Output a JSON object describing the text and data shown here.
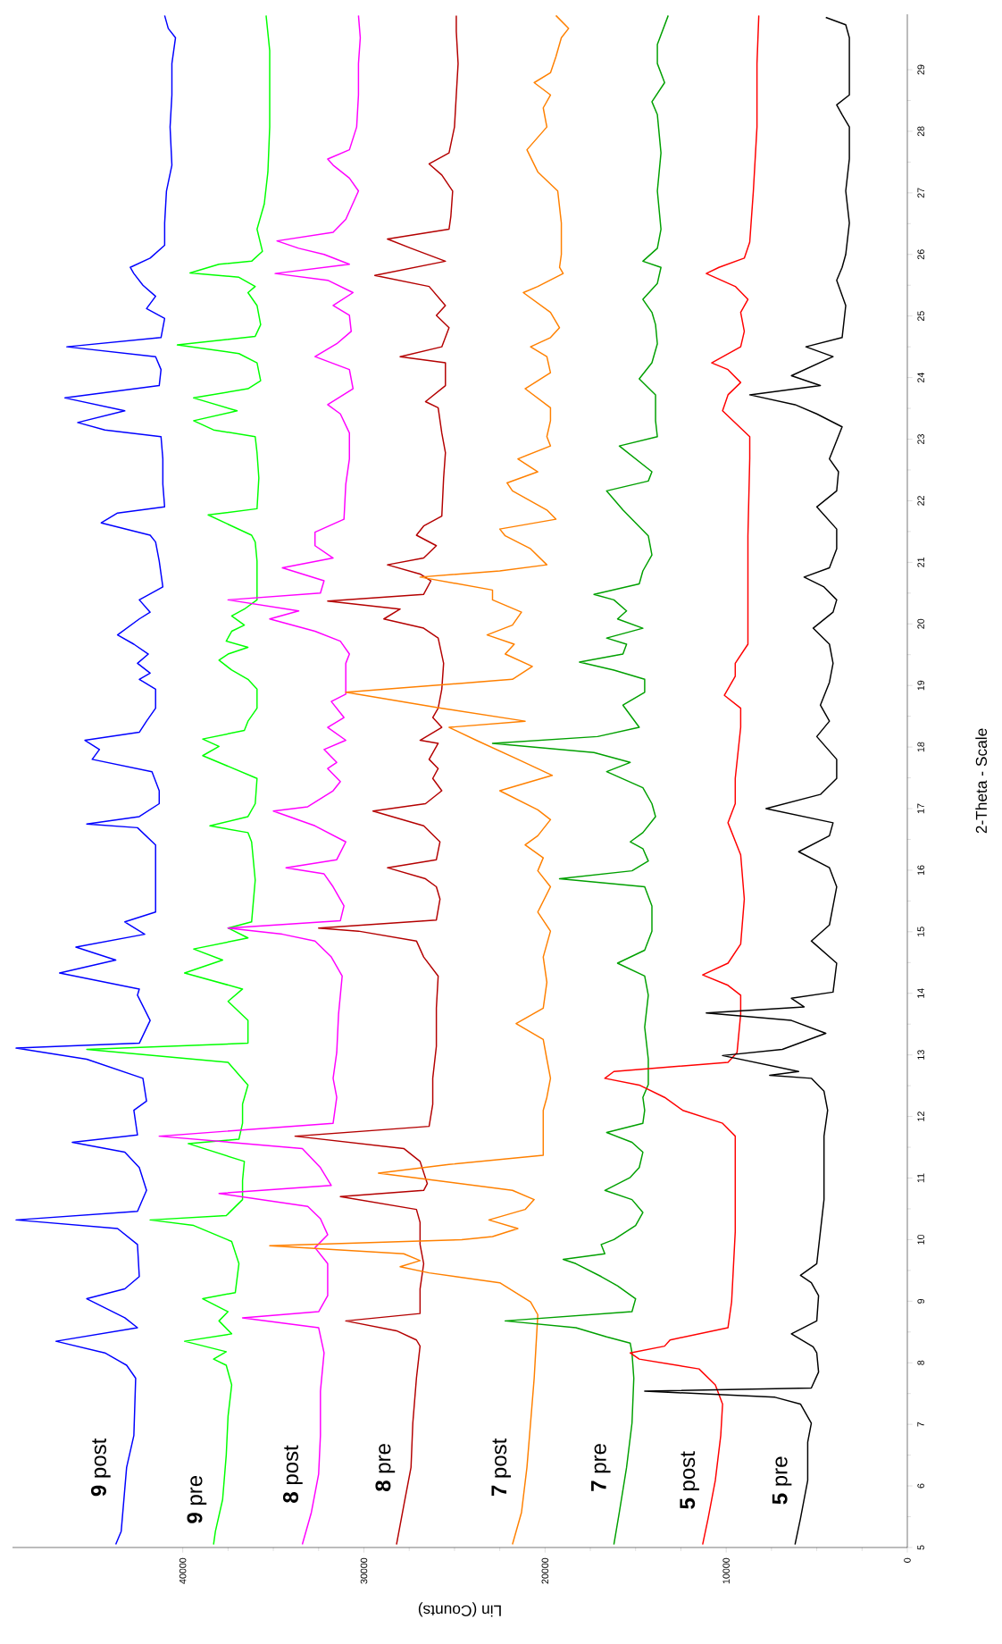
{
  "chart_data": {
    "type": "line",
    "xlabel": "Lin (Counts)",
    "ylabel": "2-Theta - Scale",
    "xlim": [
      49400,
      0
    ],
    "ylim": [
      5,
      29.9
    ],
    "xticks": [
      0,
      10000,
      20000,
      30000,
      40000
    ],
    "yticks": [
      5,
      6,
      7,
      8,
      9,
      10,
      11,
      12,
      13,
      14,
      15,
      16,
      17,
      18,
      19,
      20,
      21,
      22,
      23,
      24,
      25,
      26,
      27,
      28,
      29
    ],
    "marker": "none",
    "line_style": "solid",
    "grid": false,
    "series": [
      {
        "name": "**9** post",
        "color": "#0000ff",
        "values": [
          5.05,
          5.26,
          6.3,
          6.82,
          7.75,
          7.96,
          8.16,
          8.35,
          8.57,
          8.73,
          9.04,
          9.2,
          9.4,
          9.92,
          10.18,
          10.32,
          10.46,
          10.8,
          11.17,
          11.42,
          11.58,
          11.7,
          12.1,
          12.25,
          12.62,
          12.93,
          13.11,
          13.19,
          13.56,
          13.97,
          14.07,
          14.33,
          14.54,
          14.75,
          14.96,
          15.16,
          15.32,
          16.41,
          16.69,
          16.75,
          16.87,
          17.08,
          17.29,
          17.6,
          17.8,
          17.96,
          18.11,
          18.24,
          18.42,
          18.63,
          18.94,
          19.1,
          19.2,
          19.36,
          19.51,
          19.67,
          19.82,
          20.08,
          20.19,
          20.39,
          20.6,
          21.02,
          21.33,
          21.44,
          21.64,
          21.8,
          21.9,
          22.27,
          22.68,
          23.04,
          23.15,
          23.27,
          23.46,
          23.67,
          23.87,
          24.13,
          24.34,
          24.5,
          24.65,
          24.96,
          25.12,
          25.32,
          25.5,
          25.69,
          25.79,
          25.94,
          26.15,
          26.51,
          27.03,
          27.45,
          28.07,
          28.59,
          29.1,
          29.52,
          29.67,
          29.88
        ],
        "x": [
          43700,
          43400,
          43100,
          42700,
          42600,
          43100,
          44300,
          47000,
          42500,
          43200,
          45300,
          43200,
          42400,
          42500,
          43600,
          49200,
          42500,
          42000,
          42400,
          43200,
          46100,
          42500,
          42700,
          42000,
          42200,
          45300,
          49200,
          42400,
          41800,
          42500,
          42400,
          46800,
          43700,
          45900,
          42100,
          43200,
          41500,
          41500,
          42500,
          45300,
          42400,
          41300,
          41300,
          41700,
          45000,
          44600,
          45400,
          42400,
          42000,
          41500,
          41500,
          42400,
          41800,
          42500,
          41900,
          42700,
          43600,
          42400,
          41800,
          42400,
          41100,
          41300,
          41500,
          41800,
          44500,
          43600,
          41000,
          41100,
          41100,
          41200,
          44300,
          45800,
          43200,
          46500,
          41300,
          41200,
          41500,
          46400,
          41200,
          41000,
          42000,
          41500,
          42200,
          42700,
          42900,
          41800,
          41000,
          41000,
          40900,
          40600,
          40700,
          40600,
          40600,
          40400,
          40800,
          41000
        ]
      },
      {
        "name": "**9** pre",
        "color": "#00ff00",
        "values": [
          5.05,
          5.26,
          5.78,
          6.5,
          7.13,
          7.64,
          7.96,
          8.06,
          8.18,
          8.35,
          8.47,
          8.68,
          8.83,
          9.04,
          9.14,
          9.61,
          9.97,
          10.23,
          10.32,
          10.39,
          10.65,
          10.96,
          11.27,
          11.56,
          11.63,
          11.89,
          12.2,
          12.51,
          12.88,
          13.09,
          13.19,
          13.56,
          13.87,
          14.07,
          14.33,
          14.54,
          14.72,
          14.9,
          15.06,
          15.16,
          15.84,
          16.46,
          16.61,
          16.72,
          16.87,
          17.08,
          17.49,
          17.86,
          18.01,
          18.13,
          18.27,
          18.42,
          18.63,
          18.94,
          19.1,
          19.25,
          19.41,
          19.51,
          19.62,
          19.72,
          19.88,
          19.98,
          20.13,
          20.24,
          20.39,
          21.02,
          21.33,
          21.44,
          21.77,
          21.87,
          22.37,
          22.78,
          23.04,
          23.15,
          23.3,
          23.46,
          23.67,
          23.82,
          23.95,
          24.24,
          24.39,
          24.53,
          24.67,
          24.86,
          25.17,
          25.38,
          25.48,
          25.63,
          25.7,
          25.84,
          25.89,
          26.05,
          26.41,
          26.82,
          27.34,
          28.07,
          29.31,
          29.88
        ],
        "x": [
          38300,
          38200,
          37800,
          37600,
          37500,
          37300,
          37600,
          38300,
          37600,
          39900,
          37300,
          38000,
          37500,
          38900,
          37100,
          36900,
          37300,
          39400,
          41800,
          37600,
          36700,
          36700,
          36600,
          39700,
          36900,
          36700,
          36700,
          36400,
          37500,
          45300,
          36400,
          36400,
          37500,
          36700,
          39900,
          37800,
          39400,
          36400,
          37500,
          36200,
          36000,
          36200,
          36400,
          38500,
          36400,
          36000,
          35900,
          38900,
          38000,
          38900,
          36600,
          36400,
          35900,
          35900,
          36400,
          37300,
          38000,
          37500,
          36400,
          37600,
          37300,
          36600,
          37300,
          36600,
          35900,
          35900,
          36000,
          36200,
          38600,
          35900,
          35800,
          35900,
          36000,
          38300,
          39400,
          37000,
          39400,
          36400,
          35700,
          35900,
          36900,
          40300,
          36000,
          35700,
          35900,
          36400,
          36000,
          36900,
          39600,
          38000,
          36200,
          35600,
          35900,
          35500,
          35300,
          35200,
          35200,
          35400
        ]
      },
      {
        "name": "**8** post",
        "color": "#ff00ff",
        "values": [
          5.05,
          5.57,
          6.19,
          6.82,
          7.54,
          8.16,
          8.57,
          8.73,
          8.83,
          9.09,
          9.61,
          9.87,
          10.08,
          10.34,
          10.54,
          10.75,
          10.88,
          11.17,
          11.48,
          11.68,
          11.89,
          12.31,
          12.62,
          13.04,
          13.66,
          14.28,
          14.59,
          14.85,
          14.96,
          15.06,
          15.18,
          15.42,
          15.73,
          15.94,
          16.04,
          16.17,
          16.46,
          16.72,
          16.96,
          17.03,
          17.29,
          17.44,
          17.65,
          17.75,
          17.96,
          18.11,
          18.32,
          18.48,
          18.74,
          18.86,
          19.36,
          19.51,
          19.72,
          19.88,
          20.08,
          20.21,
          20.39,
          20.5,
          20.7,
          20.91,
          21.07,
          21.27,
          21.49,
          21.7,
          22.27,
          22.68,
          23.1,
          23.41,
          23.56,
          23.82,
          24.13,
          24.34,
          24.55,
          24.75,
          25.01,
          25.17,
          25.38,
          25.58,
          25.69,
          25.84,
          26.0,
          26.1,
          26.22,
          26.36,
          26.57,
          27.03,
          27.24,
          27.45,
          27.55,
          27.7,
          28.07,
          28.59,
          29.1,
          29.52,
          29.88
        ],
        "x": [
          33400,
          32900,
          32500,
          32400,
          32400,
          32200,
          32500,
          36700,
          32500,
          32000,
          32000,
          32700,
          32000,
          32400,
          33100,
          38000,
          31800,
          32400,
          33400,
          41300,
          31700,
          31500,
          31700,
          31500,
          31400,
          31200,
          31800,
          32700,
          34500,
          37500,
          31300,
          31100,
          31700,
          32200,
          34300,
          31500,
          31000,
          32700,
          35000,
          33100,
          31700,
          31300,
          32000,
          31500,
          32200,
          31000,
          32000,
          31100,
          31800,
          31000,
          31000,
          30800,
          31300,
          32700,
          35200,
          33600,
          37500,
          32400,
          32200,
          34500,
          31700,
          32700,
          32700,
          31100,
          31000,
          30800,
          30800,
          31300,
          32000,
          30600,
          30800,
          32700,
          31500,
          30700,
          30800,
          31700,
          30600,
          32000,
          34900,
          30800,
          32200,
          33600,
          34800,
          31700,
          31000,
          30300,
          30800,
          31700,
          32000,
          30800,
          30400,
          30300,
          30300,
          30200,
          30300
        ]
      },
      {
        "name": "**8** pre",
        "color": "#b40000",
        "values": [
          5.05,
          5.68,
          6.3,
          7.02,
          7.75,
          8.27,
          8.37,
          8.52,
          8.68,
          8.8,
          9.2,
          9.61,
          9.92,
          10.28,
          10.49,
          10.7,
          10.8,
          10.91,
          11.27,
          11.48,
          11.68,
          11.84,
          12.2,
          12.62,
          13.14,
          13.76,
          14.28,
          14.59,
          14.85,
          15.01,
          15.06,
          15.19,
          15.53,
          15.73,
          15.86,
          16.04,
          16.17,
          16.46,
          16.72,
          16.96,
          17.08,
          17.29,
          17.49,
          17.65,
          17.8,
          18.06,
          18.11,
          18.32,
          18.48,
          18.63,
          18.94,
          19.36,
          19.77,
          19.93,
          20.08,
          20.24,
          20.37,
          20.48,
          20.7,
          20.81,
          20.96,
          21.07,
          21.27,
          21.44,
          21.59,
          21.75,
          22.37,
          22.78,
          23.1,
          23.51,
          23.61,
          23.87,
          24.24,
          24.34,
          24.5,
          24.81,
          25.01,
          25.17,
          25.48,
          25.66,
          25.89,
          26.1,
          26.25,
          26.41,
          26.62,
          27.03,
          27.29,
          27.47,
          27.65,
          28.07,
          28.59,
          29.1,
          29.62,
          29.88
        ],
        "x": [
          28200,
          27800,
          27400,
          27300,
          27100,
          26900,
          27100,
          28200,
          31000,
          26900,
          26900,
          26700,
          26900,
          26900,
          27100,
          31300,
          26700,
          26500,
          26900,
          27800,
          33800,
          26400,
          26200,
          26200,
          26000,
          26000,
          25900,
          26700,
          27100,
          30300,
          32500,
          26000,
          25800,
          26000,
          26600,
          28700,
          26000,
          25800,
          26700,
          29500,
          26600,
          25700,
          26200,
          25900,
          26400,
          25900,
          26900,
          25700,
          26200,
          25900,
          25700,
          25600,
          25900,
          26700,
          28900,
          28000,
          32000,
          26700,
          26300,
          26900,
          28700,
          26700,
          26000,
          27100,
          26700,
          25700,
          25600,
          25500,
          25700,
          25900,
          26600,
          25500,
          25500,
          28000,
          25700,
          25300,
          26000,
          25500,
          26400,
          29400,
          25500,
          27400,
          28700,
          25300,
          25200,
          25100,
          25700,
          26400,
          25300,
          25000,
          24900,
          24800,
          24900,
          24900
        ]
      },
      {
        "name": "**7** post",
        "color": "#ff8000",
        "values": [
          5.05,
          5.57,
          6.3,
          7.02,
          7.75,
          8.27,
          8.78,
          8.99,
          9.3,
          9.46,
          9.56,
          9.66,
          9.77,
          9.9,
          10.0,
          10.05,
          10.18,
          10.32,
          10.49,
          10.65,
          10.8,
          10.96,
          11.08,
          11.22,
          11.37,
          12.1,
          12.31,
          12.62,
          12.93,
          13.25,
          13.51,
          13.76,
          14.18,
          14.59,
          15.01,
          15.32,
          15.73,
          15.99,
          16.2,
          16.41,
          16.56,
          16.82,
          16.98,
          17.29,
          17.54,
          17.8,
          18.11,
          18.32,
          18.42,
          18.63,
          18.89,
          19.1,
          19.31,
          19.51,
          19.67,
          19.82,
          19.98,
          20.19,
          20.39,
          20.55,
          20.76,
          20.86,
          20.96,
          21.22,
          21.43,
          21.54,
          21.7,
          21.85,
          22.16,
          22.29,
          22.47,
          22.68,
          22.89,
          23.04,
          23.3,
          23.51,
          23.82,
          24.08,
          24.34,
          24.5,
          24.65,
          24.81,
          25.06,
          25.38,
          25.48,
          25.69,
          25.79,
          26.0,
          26.51,
          27.03,
          27.34,
          27.7,
          28.07,
          28.38,
          28.59,
          28.79,
          28.95,
          29.21,
          29.52,
          29.67,
          29.88
        ],
        "x": [
          21800,
          21300,
          21000,
          20800,
          20600,
          20500,
          20400,
          20800,
          22500,
          26400,
          28000,
          26900,
          27800,
          35200,
          24600,
          22900,
          21500,
          23100,
          21100,
          20600,
          21800,
          26000,
          29200,
          25300,
          20100,
          20100,
          19900,
          19700,
          19900,
          20100,
          21600,
          20100,
          19900,
          20100,
          19700,
          20400,
          19700,
          20400,
          20100,
          21100,
          20400,
          19700,
          20400,
          22500,
          19600,
          21500,
          23800,
          25300,
          21100,
          25700,
          31000,
          21800,
          20700,
          22200,
          21700,
          23200,
          21800,
          21300,
          22900,
          22900,
          26900,
          22500,
          19900,
          20800,
          22200,
          22500,
          19400,
          19900,
          21800,
          22100,
          20400,
          21500,
          19700,
          19900,
          19700,
          19700,
          21100,
          19700,
          19900,
          20800,
          19700,
          19200,
          19700,
          21200,
          20400,
          19000,
          19200,
          19100,
          19100,
          19300,
          20400,
          21000,
          19900,
          20100,
          19700,
          20600,
          19700,
          19400,
          19100,
          18700,
          19400
        ]
      },
      {
        "name": "**7** pre",
        "color": "#00a000",
        "values": [
          5.05,
          5.57,
          6.3,
          7.02,
          7.75,
          8.16,
          8.32,
          8.42,
          8.57,
          8.68,
          8.83,
          9.04,
          9.25,
          9.4,
          9.61,
          9.68,
          9.77,
          9.92,
          10.0,
          10.23,
          10.44,
          10.65,
          10.8,
          11.01,
          11.17,
          11.42,
          11.58,
          11.74,
          11.89,
          12.1,
          12.31,
          12.52,
          12.93,
          13.45,
          13.97,
          14.28,
          14.49,
          14.7,
          15.01,
          15.42,
          15.73,
          15.86,
          15.99,
          16.15,
          16.35,
          16.46,
          16.61,
          16.87,
          17.08,
          17.34,
          17.6,
          17.75,
          17.91,
          18.06,
          18.17,
          18.32,
          18.48,
          18.68,
          18.89,
          19.1,
          19.25,
          19.38,
          19.51,
          19.67,
          19.77,
          19.93,
          20.08,
          20.21,
          20.39,
          20.48,
          20.65,
          20.86,
          21.12,
          21.43,
          21.85,
          22.16,
          22.32,
          22.47,
          22.89,
          23.04,
          23.3,
          23.72,
          23.98,
          24.24,
          24.55,
          24.86,
          25.06,
          25.27,
          25.53,
          25.79,
          25.89,
          26.1,
          26.41,
          27.03,
          27.65,
          28.27,
          28.48,
          28.79,
          29.1,
          29.41,
          29.88
        ],
        "x": [
          16200,
          15900,
          15500,
          15200,
          15100,
          15200,
          15300,
          16600,
          18300,
          22200,
          15200,
          15000,
          16000,
          16900,
          18300,
          19000,
          16700,
          16900,
          16200,
          15000,
          14600,
          15200,
          16700,
          15300,
          14800,
          14600,
          15200,
          16600,
          14600,
          14500,
          14600,
          14300,
          14300,
          14500,
          14300,
          14500,
          16000,
          14500,
          14100,
          14100,
          14500,
          19200,
          15200,
          14300,
          14600,
          15300,
          14600,
          13900,
          14100,
          14600,
          16600,
          15300,
          17300,
          22900,
          17100,
          14800,
          15200,
          15700,
          14500,
          14500,
          16200,
          18100,
          15700,
          15500,
          16600,
          14600,
          16000,
          15500,
          16200,
          17300,
          14800,
          14600,
          14100,
          14300,
          15700,
          16600,
          14300,
          14100,
          15900,
          13800,
          13900,
          13900,
          14800,
          14100,
          13800,
          13900,
          14100,
          14600,
          13800,
          13600,
          14600,
          13800,
          13600,
          13800,
          13600,
          13800,
          14100,
          13400,
          13800,
          13800,
          13200
        ]
      },
      {
        "name": "**5** post",
        "color": "#ff0000",
        "values": [
          5.05,
          5.47,
          6.09,
          6.82,
          7.33,
          7.64,
          7.9,
          8.06,
          8.16,
          8.27,
          8.37,
          8.57,
          8.99,
          10.13,
          11.68,
          11.89,
          12.1,
          12.31,
          12.51,
          12.62,
          12.73,
          12.88,
          13.04,
          13.66,
          13.97,
          14.13,
          14.3,
          14.49,
          14.8,
          15.53,
          16.25,
          16.77,
          17.08,
          17.49,
          18.32,
          18.63,
          18.84,
          19.15,
          19.36,
          19.67,
          21.43,
          22.68,
          23.04,
          23.46,
          23.72,
          23.92,
          24.13,
          24.24,
          24.5,
          24.75,
          25.06,
          25.27,
          25.48,
          25.69,
          25.79,
          25.94,
          26.2,
          27.03,
          28.07,
          29.1,
          29.88
        ],
        "x": [
          11300,
          11000,
          10600,
          10300,
          10200,
          10600,
          11500,
          14800,
          15300,
          13400,
          13100,
          9900,
          9700,
          9500,
          9500,
          10200,
          12400,
          13400,
          14800,
          16700,
          16200,
          9900,
          9400,
          9200,
          9200,
          9900,
          11300,
          9900,
          9200,
          9000,
          9200,
          9900,
          9500,
          9500,
          9200,
          9200,
          10100,
          9500,
          9500,
          8800,
          8800,
          8700,
          8700,
          10200,
          9900,
          9200,
          9900,
          10800,
          9200,
          9000,
          9200,
          8800,
          9500,
          11100,
          10400,
          9000,
          8700,
          8500,
          8300,
          8300,
          8200
        ]
      },
      {
        "name": "**5** pre",
        "color": "#000000",
        "values": [
          5.05,
          5.47,
          6.09,
          6.71,
          7.02,
          7.33,
          7.44,
          7.54,
          7.59,
          7.85,
          8.16,
          8.26,
          8.47,
          8.68,
          9.09,
          9.3,
          9.42,
          9.61,
          10.65,
          11.68,
          12.1,
          12.41,
          12.62,
          12.67,
          12.73,
          12.99,
          13.09,
          13.35,
          13.56,
          13.68,
          13.78,
          13.92,
          14.02,
          14.49,
          14.85,
          15.11,
          15.73,
          16.04,
          16.3,
          16.56,
          16.77,
          17.0,
          17.23,
          17.49,
          17.8,
          18.17,
          18.42,
          18.68,
          19.05,
          19.36,
          19.67,
          19.93,
          20.19,
          20.39,
          20.6,
          20.76,
          20.91,
          21.22,
          21.54,
          21.9,
          22.16,
          22.47,
          22.68,
          23.2,
          23.41,
          23.56,
          23.72,
          23.87,
          24.03,
          24.34,
          24.5,
          24.65,
          25.17,
          25.58,
          25.79,
          26.0,
          26.51,
          27.03,
          27.55,
          28.07,
          28.27,
          28.43,
          28.59,
          29.52,
          29.73,
          29.85
        ],
        "x": [
          6200,
          5900,
          5500,
          5500,
          5300,
          5900,
          7300,
          14500,
          5300,
          4900,
          5000,
          5200,
          6400,
          5000,
          4900,
          5300,
          5900,
          5000,
          4600,
          4600,
          4400,
          4600,
          5300,
          7600,
          6000,
          10200,
          6900,
          4500,
          6400,
          11100,
          5700,
          6400,
          4100,
          3900,
          5300,
          4300,
          3900,
          4300,
          6000,
          4300,
          4100,
          7800,
          4800,
          3900,
          3900,
          5000,
          4300,
          4800,
          4300,
          4100,
          4300,
          5200,
          4100,
          3900,
          4600,
          5700,
          4300,
          3900,
          3900,
          5000,
          3900,
          3800,
          4300,
          3600,
          5000,
          6200,
          8700,
          4800,
          6400,
          4100,
          5600,
          3600,
          3400,
          3900,
          3600,
          3400,
          3200,
          3400,
          3200,
          3200,
          3600,
          3900,
          3200,
          3200,
          3400,
          4500
        ]
      }
    ]
  }
}
